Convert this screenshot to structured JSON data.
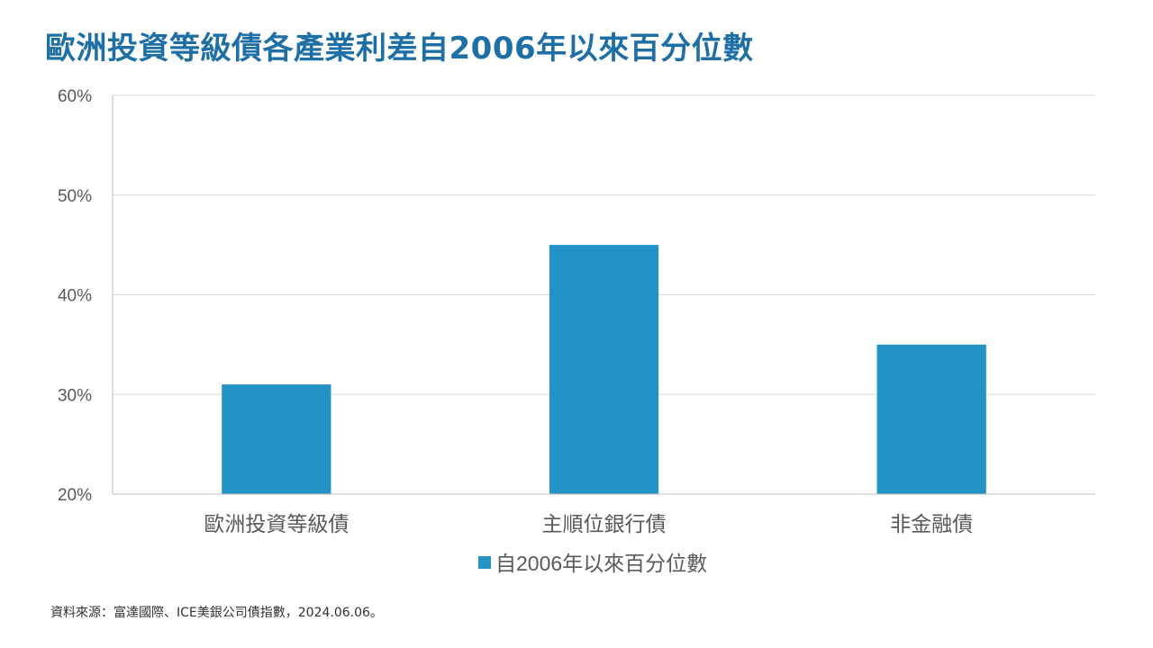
{
  "title": "歐洲投資等級債各產業利差自2006年以來百分位數",
  "source": "資料來源：富達國際、ICE美銀公司債指數，2024.06.06。",
  "colors": {
    "bar": "#2393c6",
    "title": "#1e6fa6",
    "grid": "#d9d9d9",
    "axis": "#bfbfbf",
    "text": "#595959"
  },
  "chart_data": {
    "type": "bar",
    "title": "歐洲投資等級債各產業利差自2006年以來百分位數",
    "categories": [
      "歐洲投資等級債",
      "主順位銀行債",
      "非金融債"
    ],
    "series": [
      {
        "name": "自2006年以來百分位數",
        "values": [
          31,
          45,
          35
        ]
      }
    ],
    "ylim": [
      20,
      60
    ],
    "yticks": [
      20,
      30,
      40,
      50,
      60
    ],
    "ytick_labels": [
      "20%",
      "30%",
      "40%",
      "50%",
      "60%"
    ],
    "xlabel": "",
    "ylabel": "",
    "grid": true,
    "legend_position": "bottom-center"
  }
}
